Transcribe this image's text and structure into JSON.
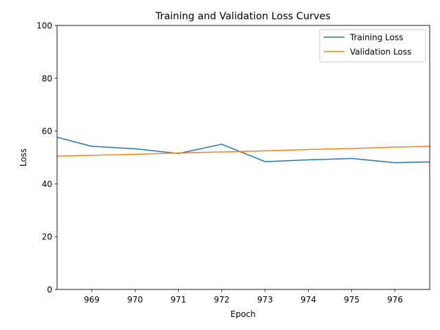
{
  "chart_data": {
    "type": "line",
    "title": "Training and Validation Loss Curves",
    "xlabel": "Epoch",
    "ylabel": "Loss",
    "xlim": [
      968.2,
      976.8
    ],
    "ylim": [
      0,
      100
    ],
    "xticks": [
      969,
      970,
      971,
      972,
      973,
      974,
      975,
      976
    ],
    "yticks": [
      0,
      20,
      40,
      60,
      80,
      100
    ],
    "grid": false,
    "legend_position": "top-right",
    "x": [
      968,
      969,
      970,
      971,
      972,
      973,
      974,
      975,
      976,
      977
    ],
    "series": [
      {
        "name": "Training Loss",
        "color": "#1f77b4",
        "values": [
          58.5,
          54.2,
          53.3,
          51.5,
          55.0,
          48.4,
          49.1,
          49.6,
          48.0,
          48.4
        ]
      },
      {
        "name": "Validation Loss",
        "color": "#ff7f0e",
        "values": [
          50.4,
          50.8,
          51.2,
          51.7,
          52.1,
          52.5,
          53.0,
          53.4,
          53.9,
          54.3
        ]
      }
    ]
  }
}
